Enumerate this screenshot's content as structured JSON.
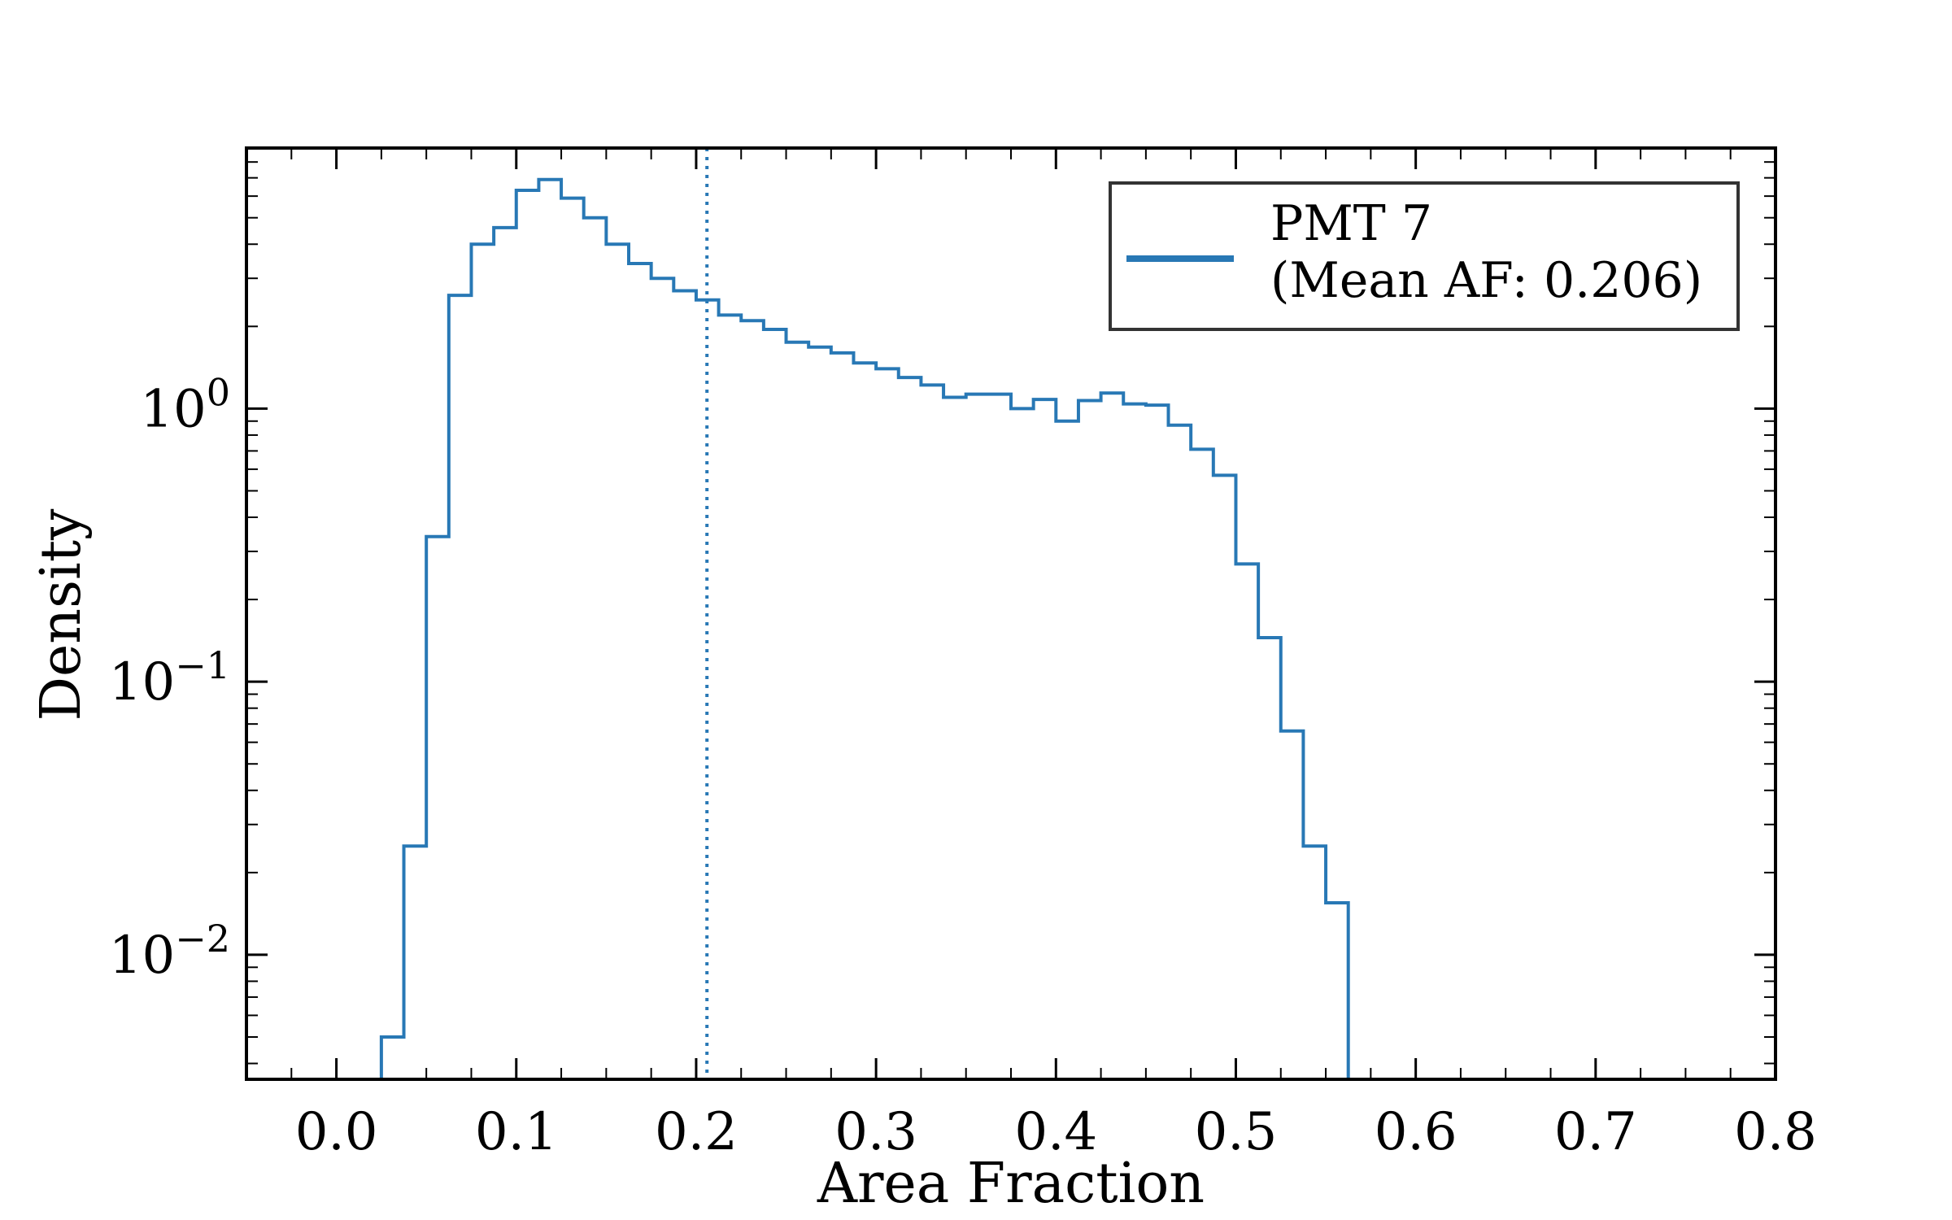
{
  "chart_data": {
    "type": "histogram",
    "xlabel": "Area Fraction",
    "ylabel": "Density",
    "x_ticks": [
      "0.0",
      "0.1",
      "0.2",
      "0.3",
      "0.4",
      "0.5",
      "0.6",
      "0.7",
      "0.8"
    ],
    "y_ticks": [
      {
        "base": "10",
        "exp": "0",
        "value": 1
      },
      {
        "base": "10",
        "exp": "−1",
        "value": 0.1
      },
      {
        "base": "10",
        "exp": "−2",
        "value": 0.01
      }
    ],
    "xlim": [
      -0.05,
      0.8
    ],
    "ylim": [
      0.0035,
      9.0
    ],
    "y_scale": "log",
    "grid": false,
    "legend_position": "upper right",
    "series": [
      {
        "name": "PMT 7",
        "legend_detail": "(Mean AF: 0.206)",
        "color": "#2878b5",
        "bin_width": 0.0125,
        "bin_starts": [
          0.025,
          0.0375,
          0.05,
          0.0625,
          0.075,
          0.0875,
          0.1,
          0.1125,
          0.125,
          0.1375,
          0.15,
          0.1625,
          0.175,
          0.1875,
          0.2,
          0.2125,
          0.225,
          0.2375,
          0.25,
          0.2625,
          0.275,
          0.2875,
          0.3,
          0.3125,
          0.325,
          0.3375,
          0.35,
          0.3625,
          0.375,
          0.3875,
          0.4,
          0.4125,
          0.425,
          0.4375,
          0.45,
          0.4625,
          0.475,
          0.4875,
          0.5,
          0.5125,
          0.525,
          0.5375,
          0.55
        ],
        "values": [
          0.005,
          0.025,
          0.34,
          2.6,
          4.0,
          4.6,
          6.3,
          6.9,
          5.9,
          5.0,
          4.0,
          3.4,
          3.0,
          2.7,
          2.5,
          2.2,
          2.1,
          1.95,
          1.75,
          1.68,
          1.6,
          1.47,
          1.4,
          1.3,
          1.22,
          1.1,
          1.13,
          1.13,
          1.0,
          1.08,
          0.9,
          1.07,
          1.14,
          1.04,
          1.03,
          0.87,
          0.71,
          0.57,
          0.27,
          0.145,
          0.066,
          0.025,
          0.0155
        ]
      }
    ],
    "mean_line": {
      "x": 0.206,
      "style": "dotted",
      "color": "#2878b5"
    }
  }
}
